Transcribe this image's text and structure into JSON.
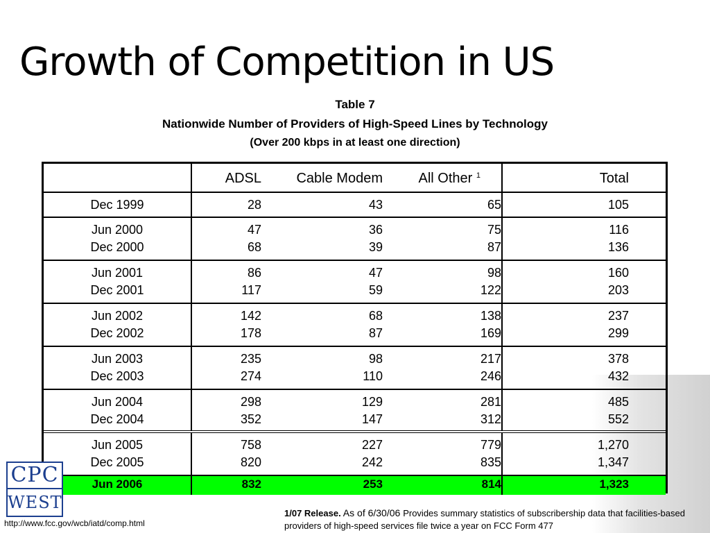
{
  "slide": {
    "title": "Growth of Competition in US",
    "caption_line1": "Table 7",
    "caption_line2": "Nationwide Number of Providers of High-Speed Lines by Technology",
    "caption_line3": "(Over 200 kbps in at least one direction)"
  },
  "table": {
    "headers": [
      "",
      "ADSL",
      "Cable Modem",
      "All Other",
      "Total"
    ],
    "footnote_mark": "1",
    "rows": [
      {
        "dates": [
          "Dec 1999"
        ],
        "adsl": [
          "28"
        ],
        "cable": [
          "43"
        ],
        "other": [
          "65"
        ],
        "total": [
          "105"
        ]
      },
      {
        "dates": [
          "Jun 2000",
          "Dec 2000"
        ],
        "adsl": [
          "47",
          "68"
        ],
        "cable": [
          "36",
          "39"
        ],
        "other": [
          "75",
          "87"
        ],
        "total": [
          "116",
          "136"
        ]
      },
      {
        "dates": [
          "Jun 2001",
          "Dec 2001"
        ],
        "adsl": [
          "86",
          "117"
        ],
        "cable": [
          "47",
          "59"
        ],
        "other": [
          "98",
          "122"
        ],
        "total": [
          "160",
          "203"
        ]
      },
      {
        "dates": [
          "Jun 2002",
          "Dec 2002"
        ],
        "adsl": [
          "142",
          "178"
        ],
        "cable": [
          "68",
          "87"
        ],
        "other": [
          "138",
          "169"
        ],
        "total": [
          "237",
          "299"
        ]
      },
      {
        "dates": [
          "Jun 2003",
          "Dec 2003"
        ],
        "adsl": [
          "235",
          "274"
        ],
        "cable": [
          "98",
          "110"
        ],
        "other": [
          "217",
          "246"
        ],
        "total": [
          "378",
          "432"
        ]
      },
      {
        "dates": [
          "Jun 2004",
          "Dec 2004"
        ],
        "adsl": [
          "298",
          "352"
        ],
        "cable": [
          "129",
          "147"
        ],
        "other": [
          "281",
          "312"
        ],
        "total": [
          "485",
          "552"
        ]
      },
      {
        "dates": [
          "Jun 2005",
          "Dec 2005"
        ],
        "adsl": [
          "758",
          "820"
        ],
        "cable": [
          "227",
          "242"
        ],
        "other": [
          "779",
          "835"
        ],
        "total": [
          "1,270",
          "1,347"
        ]
      }
    ],
    "highlight_row": {
      "date": "Jun 2006",
      "adsl": "832",
      "cable": "253",
      "other": "814",
      "total": "1,323"
    },
    "highlight_color": "#00ff00"
  },
  "logo": {
    "line1": "CPC",
    "line2": "WEST"
  },
  "footer": {
    "url": "http://www.fcc.gov/wcb/iatd/comp.html",
    "note_bold": "1/07 Release.",
    "note_text_a": " As of 6/30/06 ",
    "note_text_b": "Provides summary statistics of subscribership data that facilities-based providers of high-speed services file twice a year on FCC Form 477"
  }
}
